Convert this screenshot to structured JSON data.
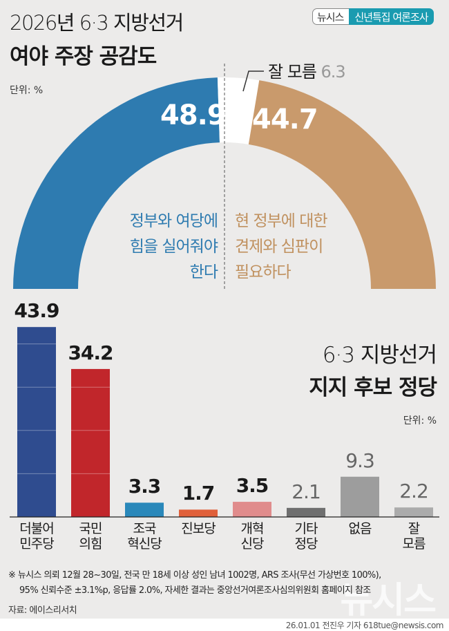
{
  "header": {
    "title_line1": "2026년 6·3 지방선거",
    "title_line2": "여야 주장 공감도",
    "badge_brand": "뉴시스",
    "badge_label": "신년특집 여론조사"
  },
  "colors": {
    "government": "#2e7bb0",
    "opposition": "#c99a6c",
    "unknown": "#ffffff"
  },
  "chart_data": [
    {
      "type": "pie",
      "subtype": "half-donut",
      "title": "여야 주장 공감도",
      "unit": "단위: %",
      "slices": [
        {
          "name": "정부와 여당에 힘을 실어줘야 한다",
          "value": 48.9,
          "color": "#2e7bb0",
          "label_lines": [
            "정부와 여당에",
            "힘을 실어줘야",
            "한다"
          ]
        },
        {
          "name": "잘 모름",
          "value": 6.3,
          "color": "#ffffff"
        },
        {
          "name": "현 정부에 대한 견제와 심판이 필요하다",
          "value": 44.7,
          "color": "#c99a6c",
          "label_lines": [
            "현 정부에 대한",
            "견제와 심판이",
            "필요하다"
          ]
        }
      ],
      "unknown_label": "잘 모름",
      "unknown_value": "6.3",
      "value_labels": [
        "48.9",
        "44.7"
      ]
    },
    {
      "type": "bar",
      "title_line1": "6·3 지방선거",
      "title_line2": "지지 후보 정당",
      "unit": "단위: %",
      "ylim": [
        0,
        45
      ],
      "grid": [
        10,
        20,
        30,
        40
      ],
      "categories": [
        [
          "더불어",
          "민주당"
        ],
        [
          "국민",
          "의힘"
        ],
        [
          "조국",
          "혁신당"
        ],
        [
          "진보당"
        ],
        [
          "개혁",
          "신당"
        ],
        [
          "기타",
          "정당"
        ],
        [
          "없음"
        ],
        [
          "잘",
          "모름"
        ]
      ],
      "values": [
        43.9,
        34.2,
        3.3,
        1.7,
        3.5,
        2.1,
        9.3,
        2.2
      ],
      "labels": [
        "43.9",
        "34.2",
        "3.3",
        "1.7",
        "3.5",
        "2.1",
        "9.3",
        "2.2"
      ],
      "colors": [
        "#2f4c8f",
        "#c1262b",
        "#2a88ba",
        "#e0603a",
        "#e08c8c",
        "#6f6f6f",
        "#9d9d9d",
        "#ababab"
      ],
      "bold": [
        true,
        true,
        true,
        true,
        true,
        false,
        false,
        false
      ]
    }
  ],
  "footer": {
    "note_line1": "※ 뉴시스 의뢰 12월 28~30일, 전국 만 18세 이상 성인 남녀 1002명, ARS 조사(무선 가상번호 100%),",
    "note_line2": "95% 신뢰수준 ±3.1%p, 응답률 2.0%, 자세한 결과는 중앙선거여론조사심의위원회 홈페이지 참조",
    "source": "자료: 에이스리서치",
    "credit": "26.01.01 전진우 기자 618tue@newsis.com",
    "watermark": "뉴시스"
  }
}
